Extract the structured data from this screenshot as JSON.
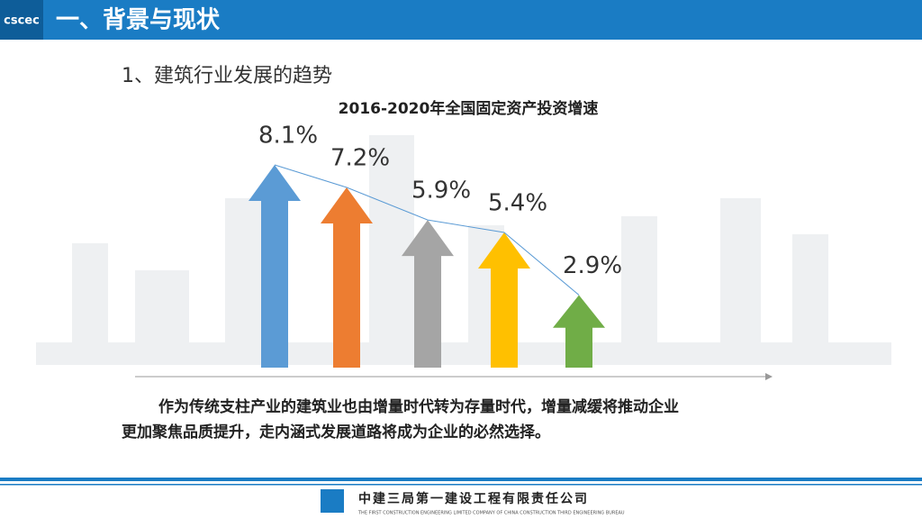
{
  "header": {
    "title": "一、背景与现状"
  },
  "subtitle": "1、建筑行业发展的趋势",
  "chart_data": {
    "type": "bar",
    "title": "2016-2020年全国固定资产投资增速",
    "categories": [
      null,
      null,
      null,
      null,
      null
    ],
    "values": [
      8.1,
      7.2,
      5.9,
      5.4,
      2.9
    ],
    "value_labels": [
      "8.1%",
      "7.2%",
      "5.9%",
      "5.4%",
      "2.9%"
    ],
    "colors": [
      "#5b9bd5",
      "#ed7d31",
      "#a5a5a5",
      "#ffc000",
      "#70ad47"
    ],
    "ylim": [
      0,
      9
    ],
    "trend_line_color": "#5b9bd5"
  },
  "body": [
    "作为传统支柱产业的建筑业也由增量时代转为存量时代，增量减缓将推动企业",
    "更加聚焦品质提升，走内涵式发展道路将成为企业的必然选择。"
  ],
  "footer": {
    "company": "中建三局第一建设工程有限责任公司",
    "company_en": "THE FIRST CONSTRUCTION ENGINEERING LIMITED COMPANY OF CHINA CONSTRUCTION THIRD ENGINEERING BUREAU"
  }
}
